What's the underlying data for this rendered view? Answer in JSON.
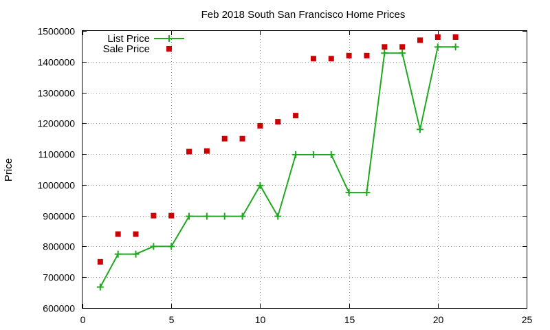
{
  "chart_data": {
    "type": "line",
    "title": "Feb 2018 South San Francisco Home Prices",
    "xlabel": "",
    "ylabel": "Price",
    "xlim": [
      0,
      25
    ],
    "ylim": [
      600000,
      1500000
    ],
    "xticks": [
      0,
      5,
      10,
      15,
      20,
      25
    ],
    "yticks": [
      600000,
      700000,
      800000,
      900000,
      1000000,
      1100000,
      1200000,
      1300000,
      1400000,
      1500000
    ],
    "grid": true,
    "legend_position": "top-left",
    "x": [
      1,
      2,
      3,
      4,
      5,
      6,
      7,
      8,
      9,
      10,
      11,
      12,
      13,
      14,
      15,
      16,
      17,
      18,
      19,
      20,
      21
    ],
    "series": [
      {
        "name": "List Price",
        "style": "line-with-plus-markers",
        "color": "#1fa81f",
        "values": [
          668000,
          775000,
          775000,
          800000,
          800000,
          898000,
          898000,
          898000,
          898000,
          998000,
          898000,
          1098000,
          1098000,
          1098000,
          975000,
          975000,
          1428000,
          1428000,
          1180000,
          1448000,
          1448000
        ]
      },
      {
        "name": "Sale Price",
        "style": "square-markers",
        "color": "#cc0000",
        "values": [
          750000,
          840000,
          840000,
          900000,
          900000,
          1108000,
          1110000,
          1150000,
          1150000,
          1192000,
          1205000,
          1225000,
          1410000,
          1410000,
          1420000,
          1420000,
          1448000,
          1448000,
          1470000,
          1480000,
          1480000
        ]
      }
    ]
  }
}
